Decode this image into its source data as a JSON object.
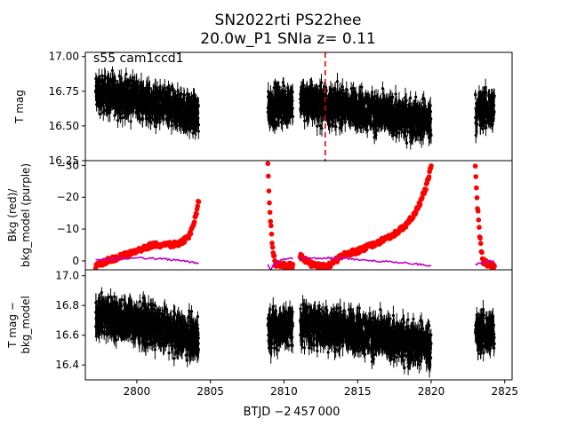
{
  "chart_data": {
    "type": "scatter",
    "title_line1": "SN2022rti  PS22hee",
    "title_line2": "20.0w_P1 SNIa z= 0.11",
    "annotation": "s55 cam1ccd1",
    "xlabel": "BTJD −2 457 000",
    "xlim": [
      2796.5,
      2825.5
    ],
    "xticks": [
      2800,
      2805,
      2810,
      2815,
      2820,
      2825
    ],
    "marker_line_x": 2812.8,
    "segments": [
      [
        2797.2,
        2804.2
      ],
      [
        2808.9,
        2810.6
      ],
      [
        2811.1,
        2820.0
      ],
      [
        2823.0,
        2824.3
      ]
    ],
    "panels": [
      {
        "ylabel_lines": [
          "T mag"
        ],
        "ylim": [
          17.03,
          16.25
        ],
        "yticks": [
          "16.25",
          "16.50",
          "16.75",
          "17.00"
        ],
        "ytick_values": [
          16.25,
          16.5,
          16.75,
          17.0
        ],
        "series": [
          {
            "color": "#000000",
            "kind": "errorbar"
          }
        ],
        "trend": [
          [
            2797.2,
            16.74
          ],
          [
            2800,
            16.69
          ],
          [
            2802,
            16.63
          ],
          [
            2804.2,
            16.58
          ],
          [
            2808.9,
            16.64
          ],
          [
            2810.6,
            16.66
          ],
          [
            2811.1,
            16.68
          ],
          [
            2813,
            16.65
          ],
          [
            2815,
            16.62
          ],
          [
            2817,
            16.58
          ],
          [
            2818.5,
            16.55
          ],
          [
            2820.0,
            16.54
          ],
          [
            2823.0,
            16.6
          ],
          [
            2824.3,
            16.63
          ]
        ],
        "spread": 0.13
      },
      {
        "ylabel_lines": [
          "Bkg (red)/",
          "bkg_model (purple)"
        ],
        "ylim": [
          -31.5,
          2.8
        ],
        "yticks": [
          "0",
          "−10",
          "−20",
          "−30"
        ],
        "ytick_values": [
          0,
          -10,
          -20,
          -30
        ],
        "series": [
          {
            "color": "#ff0000",
            "kind": "points",
            "points": [
              [
                2797.2,
                1.5
              ],
              [
                2798,
                0
              ],
              [
                2799,
                -1.5
              ],
              [
                2800,
                -3
              ],
              [
                2801,
                -5
              ],
              [
                2802,
                -5
              ],
              [
                2803,
                -5.5
              ],
              [
                2803.6,
                -8
              ],
              [
                2804.0,
                -14
              ],
              [
                2804.2,
                -19
              ],
              [
                2808.9,
                -30.5
              ],
              [
                2809.0,
                -18
              ],
              [
                2809.2,
                -5
              ],
              [
                2809.4,
                1
              ],
              [
                2810.0,
                1.5
              ],
              [
                2810.6,
                1.5
              ],
              [
                2811.1,
                -1.5
              ],
              [
                2812,
                1.5
              ],
              [
                2813,
                1.5
              ],
              [
                2813.5,
                0
              ],
              [
                2814,
                -2
              ],
              [
                2815,
                -3
              ],
              [
                2816,
                -5
              ],
              [
                2817,
                -7
              ],
              [
                2818,
                -10
              ],
              [
                2818.6,
                -13
              ],
              [
                2819.0,
                -16
              ],
              [
                2819.4,
                -20
              ],
              [
                2819.7,
                -24
              ],
              [
                2820.0,
                -30
              ],
              [
                2823.0,
                -30.5
              ],
              [
                2823.1,
                -20
              ],
              [
                2823.3,
                -8
              ],
              [
                2823.5,
                0
              ],
              [
                2824.0,
                1.5
              ],
              [
                2824.3,
                2
              ]
            ]
          },
          {
            "color": "#bf00bf",
            "kind": "line",
            "points": [
              [
                2797.2,
                -0.4
              ],
              [
                2798,
                -0.6
              ],
              [
                2799,
                -0.8
              ],
              [
                2800,
                -1.0
              ],
              [
                2801,
                -0.8
              ],
              [
                2802,
                -0.5
              ],
              [
                2803,
                0
              ],
              [
                2804,
                0.5
              ],
              [
                2804.2,
                0.6
              ],
              [
                2808.9,
                1.2
              ],
              [
                2809.1,
                3.0
              ],
              [
                2809.3,
                1.0
              ],
              [
                2810,
                -0.6
              ],
              [
                2810.6,
                -0.7
              ],
              [
                2811.1,
                -0.8
              ],
              [
                2812,
                -0.8
              ],
              [
                2813,
                -0.9
              ],
              [
                2814,
                -1.0
              ],
              [
                2815,
                -0.4
              ],
              [
                2816,
                0
              ],
              [
                2817,
                0.2
              ],
              [
                2818,
                0.6
              ],
              [
                2819,
                1.0
              ],
              [
                2820.0,
                1.4
              ],
              [
                2823.0,
                1.0
              ],
              [
                2823.4,
                0.8
              ],
              [
                2824,
                0
              ],
              [
                2824.3,
                0
              ]
            ]
          }
        ]
      },
      {
        "ylabel_lines": [
          "T mag −",
          "bkg_model"
        ],
        "ylim": [
          17.04,
          16.3
        ],
        "yticks": [
          "16.4",
          "16.6",
          "16.8",
          "17.0"
        ],
        "ytick_values": [
          16.4,
          16.6,
          16.8,
          17.0
        ],
        "series": [
          {
            "color": "#000000",
            "kind": "errorbar"
          }
        ],
        "trend": [
          [
            2797.2,
            16.74
          ],
          [
            2800,
            16.69
          ],
          [
            2802,
            16.63
          ],
          [
            2804.2,
            16.58
          ],
          [
            2808.9,
            16.64
          ],
          [
            2810.6,
            16.66
          ],
          [
            2811.1,
            16.68
          ],
          [
            2813,
            16.65
          ],
          [
            2815,
            16.62
          ],
          [
            2817,
            16.58
          ],
          [
            2818.5,
            16.55
          ],
          [
            2820.0,
            16.54
          ],
          [
            2823.0,
            16.6
          ],
          [
            2824.3,
            16.63
          ]
        ],
        "spread": 0.13
      }
    ]
  }
}
